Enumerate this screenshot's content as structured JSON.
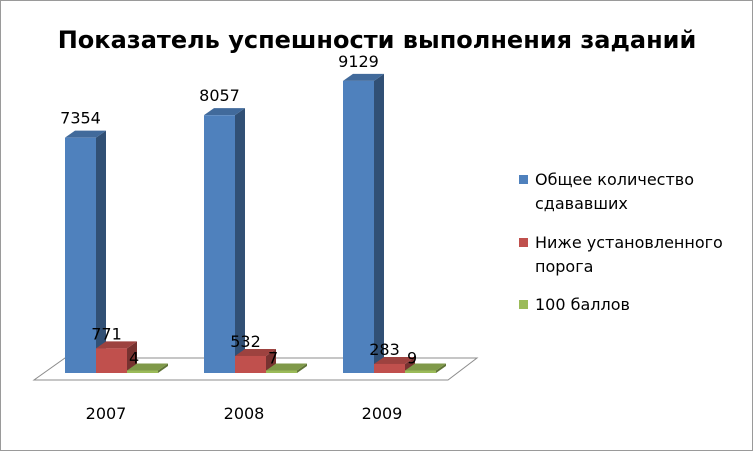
{
  "chart_data": {
    "type": "bar",
    "title": "Показатель успешности выполнения заданий",
    "categories": [
      "2007",
      "2008",
      "2009"
    ],
    "series": [
      {
        "name": "Общее количество сдававших",
        "legend_lines": [
          "Общее количество",
          "сдававших"
        ],
        "values": [
          7354,
          8057,
          9129
        ],
        "color": "#4F81BD"
      },
      {
        "name": "Ниже установленного порога",
        "legend_lines": [
          "Ниже установленного",
          "порога"
        ],
        "values": [
          771,
          532,
          283
        ],
        "color": "#C0504D"
      },
      {
        "name": "100 баллов",
        "legend_lines": [
          "100 баллов"
        ],
        "values": [
          4,
          7,
          9
        ],
        "color": "#9BBB59"
      }
    ],
    "ylim": [
      0,
      9500
    ],
    "grid": false,
    "legend": "right",
    "three_d": true
  }
}
